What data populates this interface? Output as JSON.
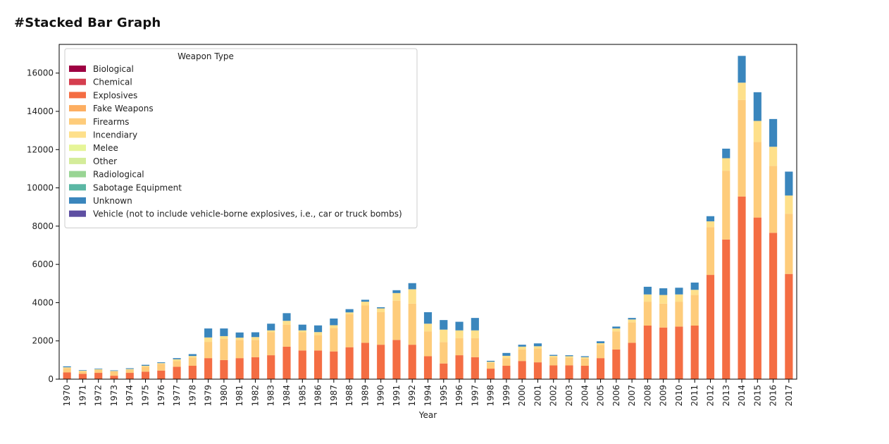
{
  "heading": "#Stacked Bar Graph",
  "chart_data": {
    "type": "bar",
    "stacked": true,
    "title": "",
    "xlabel": "Year",
    "ylabel": "",
    "ylim": [
      0,
      17500
    ],
    "yticks": [
      0,
      2000,
      4000,
      6000,
      8000,
      10000,
      12000,
      14000,
      16000
    ],
    "grid": false,
    "legend": {
      "title": "Weapon Type",
      "placement": "top-left"
    },
    "categories": [
      "1970",
      "1971",
      "1972",
      "1973",
      "1974",
      "1975",
      "1976",
      "1977",
      "1978",
      "1979",
      "1980",
      "1981",
      "1982",
      "1983",
      "1984",
      "1985",
      "1986",
      "1987",
      "1988",
      "1989",
      "1990",
      "1991",
      "1992",
      "1994",
      "1995",
      "1996",
      "1997",
      "1998",
      "1999",
      "2000",
      "2001",
      "2002",
      "2003",
      "2004",
      "2005",
      "2006",
      "2007",
      "2008",
      "2009",
      "2010",
      "2011",
      "2012",
      "2013",
      "2014",
      "2015",
      "2016",
      "2017"
    ],
    "series": [
      {
        "name": "Biological",
        "color": "#9e0142",
        "values": [
          0,
          0,
          0,
          0,
          0,
          0,
          0,
          0,
          0,
          0,
          0,
          0,
          0,
          0,
          0,
          0,
          0,
          0,
          0,
          0,
          0,
          0,
          0,
          0,
          0,
          0,
          0,
          0,
          0,
          0,
          0,
          0,
          0,
          0,
          0,
          0,
          0,
          0,
          0,
          0,
          0,
          0,
          0,
          0,
          0,
          0,
          0
        ]
      },
      {
        "name": "Chemical",
        "color": "#d53e4f",
        "values": [
          0,
          0,
          0,
          0,
          0,
          0,
          0,
          0,
          0,
          0,
          0,
          0,
          0,
          0,
          0,
          0,
          0,
          0,
          0,
          0,
          0,
          0,
          0,
          0,
          0,
          0,
          0,
          0,
          0,
          0,
          0,
          0,
          0,
          0,
          0,
          0,
          0,
          0,
          0,
          0,
          0,
          0,
          0,
          0,
          0,
          0,
          0
        ]
      },
      {
        "name": "Explosives",
        "color": "#f46d43",
        "values": [
          350,
          280,
          330,
          180,
          330,
          390,
          450,
          650,
          700,
          1100,
          1000,
          1100,
          1150,
          1250,
          1700,
          1500,
          1500,
          1450,
          1670,
          1900,
          1800,
          2050,
          1800,
          1200,
          820,
          1250,
          1150,
          550,
          700,
          950,
          880,
          720,
          720,
          700,
          1100,
          1550,
          1900,
          2800,
          2700,
          2750,
          2800,
          5450,
          7300,
          9550,
          8450,
          7650,
          5500
        ]
      },
      {
        "name": "Fake Weapons",
        "color": "#fdae61",
        "values": [
          0,
          0,
          0,
          0,
          0,
          0,
          0,
          0,
          0,
          0,
          0,
          0,
          0,
          0,
          0,
          0,
          0,
          0,
          0,
          0,
          0,
          0,
          0,
          0,
          0,
          0,
          0,
          0,
          0,
          0,
          0,
          0,
          0,
          0,
          0,
          0,
          0,
          0,
          0,
          0,
          0,
          0,
          0,
          0,
          0,
          0,
          0
        ]
      },
      {
        "name": "Firearms",
        "color": "#fecc7b",
        "values": [
          230,
          130,
          150,
          230,
          160,
          260,
          350,
          290,
          430,
          850,
          1100,
          950,
          900,
          1200,
          1150,
          950,
          800,
          1220,
          1720,
          1950,
          1700,
          2050,
          2150,
          1300,
          1120,
          900,
          1000,
          300,
          400,
          600,
          720,
          420,
          400,
          380,
          700,
          950,
          1070,
          1250,
          1250,
          1300,
          1600,
          2500,
          3600,
          5050,
          3950,
          3500,
          3150
        ]
      },
      {
        "name": "Incendiary",
        "color": "#fee08b",
        "values": [
          40,
          30,
          40,
          20,
          40,
          50,
          40,
          100,
          80,
          230,
          150,
          120,
          150,
          100,
          200,
          100,
          160,
          150,
          100,
          200,
          200,
          400,
          750,
          400,
          650,
          400,
          400,
          60,
          120,
          150,
          120,
          80,
          80,
          70,
          80,
          150,
          150,
          380,
          450,
          380,
          270,
          300,
          650,
          900,
          1100,
          1000,
          950
        ]
      },
      {
        "name": "Melee",
        "color": "#e6f598",
        "values": [
          0,
          0,
          0,
          0,
          0,
          0,
          0,
          0,
          0,
          0,
          0,
          0,
          0,
          0,
          0,
          0,
          0,
          0,
          0,
          0,
          0,
          0,
          0,
          0,
          0,
          0,
          0,
          0,
          0,
          0,
          0,
          0,
          0,
          0,
          0,
          0,
          0,
          0,
          0,
          0,
          0,
          0,
          0,
          0,
          0,
          0,
          0
        ]
      },
      {
        "name": "Other",
        "color": "#d4ec9a",
        "values": [
          0,
          0,
          0,
          0,
          0,
          0,
          0,
          0,
          0,
          0,
          0,
          0,
          0,
          0,
          0,
          0,
          0,
          0,
          0,
          0,
          0,
          0,
          0,
          0,
          0,
          0,
          0,
          0,
          0,
          0,
          0,
          0,
          0,
          0,
          0,
          0,
          0,
          0,
          0,
          0,
          0,
          0,
          0,
          0,
          0,
          0,
          0
        ]
      },
      {
        "name": "Radiological",
        "color": "#99d594",
        "values": [
          0,
          0,
          0,
          0,
          0,
          0,
          0,
          0,
          0,
          0,
          0,
          0,
          0,
          0,
          0,
          0,
          0,
          0,
          0,
          0,
          0,
          0,
          0,
          0,
          0,
          0,
          0,
          0,
          0,
          0,
          0,
          0,
          0,
          0,
          0,
          0,
          0,
          0,
          0,
          0,
          0,
          0,
          0,
          0,
          0,
          0,
          0
        ]
      },
      {
        "name": "Sabotage Equipment",
        "color": "#5bb7a4",
        "values": [
          0,
          0,
          0,
          0,
          0,
          0,
          0,
          0,
          0,
          0,
          0,
          0,
          0,
          0,
          0,
          0,
          0,
          0,
          0,
          0,
          0,
          0,
          0,
          0,
          0,
          0,
          0,
          0,
          0,
          0,
          0,
          0,
          0,
          0,
          0,
          0,
          0,
          0,
          0,
          0,
          0,
          0,
          0,
          0,
          0,
          0,
          0
        ]
      },
      {
        "name": "Unknown",
        "color": "#3a86bd",
        "values": [
          50,
          30,
          30,
          30,
          40,
          50,
          40,
          60,
          100,
          470,
          400,
          270,
          250,
          350,
          400,
          300,
          350,
          350,
          170,
          100,
          60,
          150,
          320,
          600,
          500,
          450,
          650,
          50,
          150,
          100,
          150,
          50,
          50,
          50,
          100,
          100,
          80,
          400,
          350,
          350,
          380,
          270,
          500,
          1400,
          1500,
          1450,
          1250
        ]
      },
      {
        "name": "Vehicle (not to include vehicle-borne explosives, i.e., car or truck bombs)",
        "color": "#5e4fa2",
        "values": [
          0,
          0,
          0,
          0,
          0,
          0,
          0,
          0,
          0,
          0,
          0,
          0,
          0,
          0,
          0,
          0,
          0,
          0,
          0,
          0,
          0,
          0,
          0,
          0,
          0,
          0,
          0,
          0,
          0,
          0,
          0,
          0,
          0,
          0,
          0,
          0,
          0,
          0,
          0,
          0,
          0,
          0,
          0,
          0,
          0,
          0,
          0
        ]
      }
    ]
  }
}
